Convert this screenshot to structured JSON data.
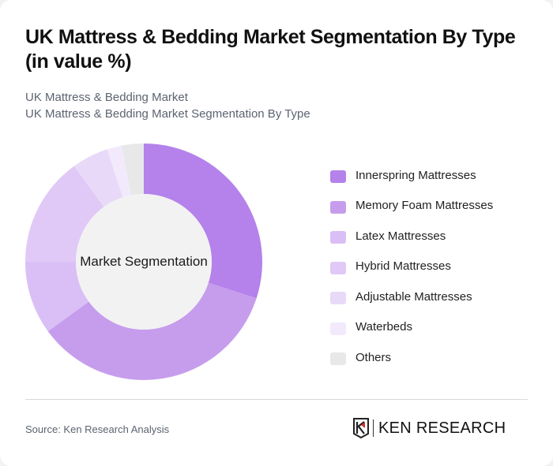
{
  "header": {
    "title": "UK Mattress & Bedding Market Segmentation By Type (in value %)",
    "subtitle_line1": "UK Mattress & Bedding Market",
    "subtitle_line2": "UK Mattress & Bedding Market Segmentation By Type"
  },
  "chart_center_label": "Market Segmentation",
  "legend": [
    {
      "label": "Innerspring Mattresses",
      "color": "#b482ea"
    },
    {
      "label": "Memory Foam Mattresses",
      "color": "#c69ded"
    },
    {
      "label": "Latex Mattresses",
      "color": "#d9bff5"
    },
    {
      "label": "Hybrid Mattresses",
      "color": "#e0c9f6"
    },
    {
      "label": "Adjustable Mattresses",
      "color": "#e8d9f9"
    },
    {
      "label": "Waterbeds",
      "color": "#f2eafc"
    },
    {
      "label": "Others",
      "color": "#e8e8e8"
    }
  ],
  "footer": {
    "source": "Source: Ken Research Analysis",
    "logo_text": "KEN RESEARCH"
  },
  "chart_data": {
    "type": "pie",
    "subtype": "donut",
    "title": "UK Mattress & Bedding Market Segmentation By Type (in value %)",
    "center_label": "Market Segmentation",
    "categories": [
      "Innerspring Mattresses",
      "Memory Foam Mattresses",
      "Latex Mattresses",
      "Hybrid Mattresses",
      "Adjustable Mattresses",
      "Waterbeds",
      "Others"
    ],
    "values": [
      30,
      35,
      10,
      15,
      5,
      2,
      3
    ],
    "colors": [
      "#b482ea",
      "#c69ded",
      "#d9bff5",
      "#e0c9f6",
      "#e8d9f9",
      "#f2eafc",
      "#e8e8e8"
    ],
    "unit": "%",
    "legend_position": "right",
    "start_angle": 0,
    "direction": "clockwise"
  }
}
